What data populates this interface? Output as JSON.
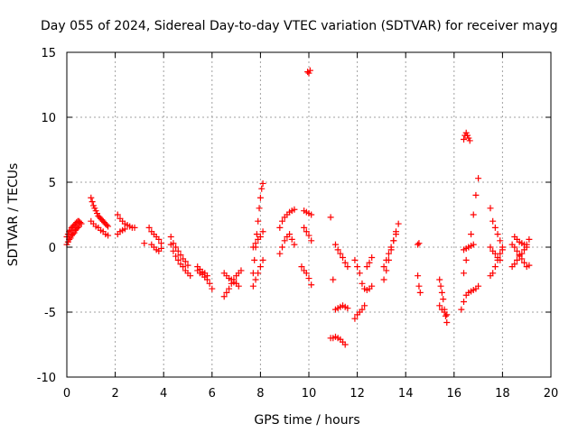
{
  "chart_data": {
    "type": "scatter",
    "title": "Day 055 of 2024, Sidereal Day-to-day VTEC variation (SDTVAR) for receiver mayg",
    "xlabel": "GPS time / hours",
    "ylabel": "SDTVAR / TECUs",
    "xlim": [
      0,
      20
    ],
    "ylim": [
      -10,
      15
    ],
    "xticks": [
      0,
      2,
      4,
      6,
      8,
      10,
      12,
      14,
      16,
      18,
      20
    ],
    "yticks": [
      -10,
      -5,
      0,
      5,
      10,
      15
    ],
    "xtick_labels": [
      "0",
      "2",
      "4",
      "6",
      "8",
      "10",
      "12",
      "14",
      "16",
      "18",
      "20"
    ],
    "ytick_labels": [
      "-10",
      "-5",
      "0",
      "5",
      "10",
      "15"
    ],
    "grid": true,
    "marker": "plus",
    "color": "#ff0000",
    "series": [
      {
        "name": "s1",
        "x": [
          0.0,
          0.05,
          0.1,
          0.15,
          0.2,
          0.25,
          0.3,
          0.35,
          0.4,
          0.45,
          0.5,
          0.55,
          0.6
        ],
        "y": [
          0.8,
          1.0,
          1.2,
          1.3,
          1.5,
          1.6,
          1.7,
          1.8,
          1.9,
          2.0,
          2.0,
          1.9,
          1.8
        ]
      },
      {
        "name": "s1b",
        "x": [
          0.0,
          0.05,
          0.1,
          0.15,
          0.2,
          0.25,
          0.3,
          0.35,
          0.4,
          0.45,
          0.5
        ],
        "y": [
          0.2,
          0.4,
          0.6,
          0.7,
          0.9,
          1.0,
          1.1,
          1.3,
          1.4,
          1.5,
          1.6
        ]
      },
      {
        "name": "s2",
        "x": [
          1.0,
          1.05,
          1.1,
          1.15,
          1.2,
          1.25,
          1.3,
          1.35,
          1.4,
          1.45,
          1.5,
          1.55,
          1.6,
          1.65,
          1.7
        ],
        "y": [
          3.8,
          3.5,
          3.2,
          3.0,
          2.8,
          2.6,
          2.4,
          2.3,
          2.2,
          2.1,
          2.0,
          1.9,
          1.8,
          1.7,
          1.6
        ]
      },
      {
        "name": "s2b",
        "x": [
          1.0,
          1.1,
          1.2,
          1.3,
          1.4,
          1.5,
          1.6,
          1.7
        ],
        "y": [
          2.0,
          1.8,
          1.6,
          1.5,
          1.3,
          1.2,
          1.0,
          0.9
        ]
      },
      {
        "name": "s3",
        "x": [
          2.1,
          2.2,
          2.3,
          2.4,
          2.5,
          2.6,
          2.7,
          2.8
        ],
        "y": [
          2.5,
          2.2,
          2.0,
          1.8,
          1.7,
          1.6,
          1.5,
          1.5
        ]
      },
      {
        "name": "s3b",
        "x": [
          2.1,
          2.2,
          2.3,
          2.4
        ],
        "y": [
          1.0,
          1.2,
          1.3,
          1.4
        ]
      },
      {
        "name": "s4",
        "x": [
          3.2,
          3.4,
          3.5,
          3.6,
          3.7,
          3.8,
          3.9
        ],
        "y": [
          0.3,
          1.5,
          1.2,
          1.0,
          0.8,
          0.6,
          0.3
        ]
      },
      {
        "name": "s4b",
        "x": [
          3.5,
          3.6,
          3.7,
          3.8,
          3.9
        ],
        "y": [
          0.2,
          0.0,
          -0.2,
          -0.3,
          -0.1
        ]
      },
      {
        "name": "s5",
        "x": [
          4.3,
          4.4,
          4.5,
          4.6,
          4.7,
          4.8,
          4.9,
          5.0,
          5.1
        ],
        "y": [
          0.2,
          -0.3,
          -0.7,
          -1.0,
          -1.3,
          -1.5,
          -1.8,
          -2.0,
          -2.2
        ]
      },
      {
        "name": "s5b",
        "x": [
          4.3,
          4.4,
          4.5,
          4.6,
          4.7,
          4.8,
          4.9,
          5.0
        ],
        "y": [
          0.8,
          0.3,
          0.0,
          -0.3,
          -0.6,
          -0.9,
          -1.1,
          -1.4
        ]
      },
      {
        "name": "s6",
        "x": [
          5.4,
          5.5,
          5.6,
          5.7,
          5.8,
          5.9,
          6.0
        ],
        "y": [
          -1.8,
          -2.0,
          -2.1,
          -2.3,
          -2.5,
          -2.8,
          -3.2
        ]
      },
      {
        "name": "s6b",
        "x": [
          5.4,
          5.5,
          5.6,
          5.7,
          5.8
        ],
        "y": [
          -1.5,
          -1.7,
          -1.9,
          -2.0,
          -2.2
        ]
      },
      {
        "name": "s7",
        "x": [
          6.5,
          6.6,
          6.7,
          6.8,
          6.9,
          7.0,
          7.1,
          7.2
        ],
        "y": [
          -3.8,
          -3.5,
          -3.2,
          -2.8,
          -2.5,
          -2.2,
          -2.0,
          -1.8
        ]
      },
      {
        "name": "s7b",
        "x": [
          6.5,
          6.6,
          6.7,
          6.8,
          6.9,
          7.0,
          7.1
        ],
        "y": [
          -2.0,
          -2.2,
          -2.4,
          -2.5,
          -2.7,
          -2.8,
          -3.0
        ]
      },
      {
        "name": "s8",
        "x": [
          7.7,
          7.75,
          7.8,
          7.85,
          7.9,
          7.95,
          8.0,
          8.05,
          8.1
        ],
        "y": [
          -2.0,
          -1.0,
          0.0,
          1.0,
          2.0,
          3.0,
          3.8,
          4.5,
          4.9
        ]
      },
      {
        "name": "s8b",
        "x": [
          7.7,
          7.8,
          7.9,
          8.0,
          8.1
        ],
        "y": [
          -3.0,
          -2.5,
          -2.0,
          -1.5,
          -1.0
        ]
      },
      {
        "name": "s8c",
        "x": [
          7.7,
          7.8,
          7.9,
          8.0,
          8.1
        ],
        "y": [
          0.0,
          0.3,
          0.6,
          0.8,
          1.2
        ]
      },
      {
        "name": "s9",
        "x": [
          8.8,
          8.9,
          9.0,
          9.1,
          9.2,
          9.3,
          9.4
        ],
        "y": [
          1.5,
          2.0,
          2.3,
          2.5,
          2.7,
          2.8,
          2.9
        ]
      },
      {
        "name": "s9b",
        "x": [
          8.8,
          8.9,
          9.0,
          9.1,
          9.2,
          9.3,
          9.4
        ],
        "y": [
          -0.5,
          0.0,
          0.5,
          0.8,
          1.0,
          0.6,
          0.2
        ]
      },
      {
        "name": "s10",
        "x": [
          9.8,
          9.9,
          10.0,
          10.1
        ],
        "y": [
          2.8,
          2.7,
          2.6,
          2.5
        ]
      },
      {
        "name": "s10b",
        "x": [
          9.8,
          9.9,
          10.0,
          10.1
        ],
        "y": [
          1.5,
          1.2,
          0.9,
          0.5
        ]
      },
      {
        "name": "s10c",
        "x": [
          9.7,
          9.8,
          9.9,
          10.0,
          10.1
        ],
        "y": [
          -1.5,
          -1.8,
          -2.0,
          -2.4,
          -2.9
        ]
      },
      {
        "name": "s10d",
        "x": [
          9.95,
          10.0,
          10.05
        ],
        "y": [
          13.5,
          13.4,
          13.6
        ]
      },
      {
        "name": "s11",
        "x": [
          10.9,
          11.0,
          11.1,
          11.2,
          11.3,
          11.4,
          11.5,
          11.6
        ],
        "y": [
          2.3,
          -2.5,
          -4.8,
          -4.7,
          -4.6,
          -4.5,
          -4.6,
          -4.7
        ]
      },
      {
        "name": "s11b",
        "x": [
          10.9,
          11.0,
          11.1,
          11.2,
          11.3,
          11.4,
          11.5
        ],
        "y": [
          -7.0,
          -7.0,
          -6.9,
          -7.0,
          -7.1,
          -7.3,
          -7.5
        ]
      },
      {
        "name": "s11c",
        "x": [
          11.1,
          11.2,
          11.3,
          11.4,
          11.5,
          11.6
        ],
        "y": [
          0.2,
          -0.2,
          -0.5,
          -0.8,
          -1.2,
          -1.5
        ]
      },
      {
        "name": "s12",
        "x": [
          11.9,
          12.0,
          12.1,
          12.2,
          12.3
        ],
        "y": [
          -5.5,
          -5.2,
          -5.0,
          -4.8,
          -4.5
        ]
      },
      {
        "name": "s12b",
        "x": [
          11.9,
          12.0,
          12.1,
          12.2,
          12.3,
          12.4,
          12.5,
          12.6
        ],
        "y": [
          -1.0,
          -1.5,
          -2.0,
          -2.8,
          -3.2,
          -3.3,
          -3.2,
          -3.0
        ]
      },
      {
        "name": "s12c",
        "x": [
          12.4,
          12.5,
          12.6
        ],
        "y": [
          -1.5,
          -1.2,
          -0.8
        ]
      },
      {
        "name": "s13",
        "x": [
          13.1,
          13.2,
          13.3,
          13.4,
          13.5,
          13.6,
          13.7
        ],
        "y": [
          -1.5,
          -1.0,
          -0.5,
          0.0,
          0.5,
          1.0,
          1.8
        ]
      },
      {
        "name": "s13b",
        "x": [
          13.1,
          13.2,
          13.3,
          13.4,
          13.5,
          13.6
        ],
        "y": [
          -2.5,
          -1.8,
          -1.0,
          -0.2,
          0.5,
          1.2
        ]
      },
      {
        "name": "s14",
        "x": [
          14.5,
          14.55
        ],
        "y": [
          0.2,
          0.3
        ]
      },
      {
        "name": "s14b",
        "x": [
          14.5,
          14.55,
          14.6
        ],
        "y": [
          -2.2,
          -3.0,
          -3.5
        ]
      },
      {
        "name": "s15",
        "x": [
          15.4,
          15.45,
          15.5,
          15.55,
          15.6,
          15.65,
          15.7
        ],
        "y": [
          -2.5,
          -3.0,
          -3.5,
          -4.0,
          -4.8,
          -5.3,
          -5.8
        ]
      },
      {
        "name": "s15b",
        "x": [
          15.4,
          15.5,
          15.6,
          15.7
        ],
        "y": [
          -4.5,
          -4.8,
          -5.0,
          -5.2
        ]
      },
      {
        "name": "s16",
        "x": [
          16.3,
          16.4,
          16.5,
          16.6,
          16.7,
          16.8,
          16.9,
          17.0
        ],
        "y": [
          -4.8,
          -4.2,
          -3.7,
          -3.5,
          -3.4,
          -3.3,
          -3.2,
          -3.0
        ]
      },
      {
        "name": "s16b",
        "x": [
          16.4,
          16.5,
          16.6,
          16.7,
          16.8,
          16.9,
          17.0
        ],
        "y": [
          -2.0,
          -1.0,
          0.0,
          1.0,
          2.5,
          4.0,
          5.3
        ]
      },
      {
        "name": "s16c",
        "x": [
          16.4,
          16.45,
          16.5,
          16.55,
          16.6,
          16.65
        ],
        "y": [
          8.3,
          8.6,
          8.8,
          8.6,
          8.4,
          8.2
        ]
      },
      {
        "name": "s16d",
        "x": [
          16.4,
          16.5,
          16.6,
          16.7,
          16.8
        ],
        "y": [
          -0.2,
          -0.1,
          0.0,
          0.1,
          0.2
        ]
      },
      {
        "name": "s17",
        "x": [
          17.5,
          17.6,
          17.7,
          17.8,
          17.9,
          18.0
        ],
        "y": [
          3.0,
          2.0,
          1.5,
          1.0,
          0.5,
          0.0
        ]
      },
      {
        "name": "s17b",
        "x": [
          17.5,
          17.6,
          17.7,
          17.8,
          17.9,
          18.0
        ],
        "y": [
          -2.2,
          -2.0,
          -1.5,
          -1.0,
          -0.5,
          -0.2
        ]
      },
      {
        "name": "s17c",
        "x": [
          17.5,
          17.6,
          17.7,
          17.8,
          17.9
        ],
        "y": [
          0.0,
          -0.3,
          -0.5,
          -0.8,
          -1.0
        ]
      },
      {
        "name": "s18",
        "x": [
          18.4,
          18.5,
          18.6,
          18.7,
          18.8,
          18.9,
          19.0,
          19.1
        ],
        "y": [
          0.2,
          0.0,
          -0.3,
          -0.6,
          -0.9,
          -1.2,
          -1.5,
          -1.4
        ]
      },
      {
        "name": "s18b",
        "x": [
          18.4,
          18.5,
          18.6,
          18.7,
          18.8,
          18.9,
          19.0,
          19.1
        ],
        "y": [
          -1.5,
          -1.3,
          -1.0,
          -0.7,
          -0.5,
          -0.2,
          0.2,
          0.6
        ]
      },
      {
        "name": "s18c",
        "x": [
          18.5,
          18.6,
          18.7,
          18.8,
          18.9,
          19.0
        ],
        "y": [
          0.8,
          0.6,
          0.4,
          0.3,
          0.2,
          0.0
        ]
      }
    ]
  }
}
